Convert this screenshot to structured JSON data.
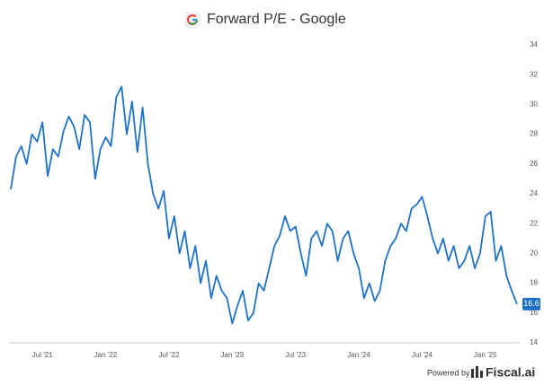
{
  "chart_data": {
    "type": "line",
    "title": "Forward P/E - Google",
    "footer": {
      "powered": "Powered by",
      "brand": "Fiscal.ai"
    },
    "categories": [
      null,
      null,
      null,
      null,
      null,
      null,
      "Jul '21",
      null,
      null,
      null,
      null,
      null,
      null,
      null,
      null,
      null,
      null,
      null,
      "Jan '22",
      null,
      null,
      null,
      null,
      null,
      null,
      null,
      null,
      null,
      null,
      null,
      "Jul '22",
      null,
      null,
      null,
      null,
      null,
      null,
      null,
      null,
      null,
      null,
      null,
      "Jan '23",
      null,
      null,
      null,
      null,
      null,
      null,
      null,
      null,
      null,
      null,
      null,
      "Jul '23",
      null,
      null,
      null,
      null,
      null,
      null,
      null,
      null,
      null,
      null,
      null,
      "Jan '24",
      null,
      null,
      null,
      null,
      null,
      null,
      null,
      null,
      null,
      null,
      null,
      "Jul '24",
      null,
      null,
      null,
      null,
      null,
      null,
      null,
      null,
      null,
      null,
      null,
      "Jan '25",
      null,
      null,
      null,
      null,
      null,
      null
    ],
    "series": [
      {
        "name": "Forward P/E",
        "color": "#1f72c8",
        "values": [
          24.3,
          26.5,
          27.2,
          26.0,
          28.0,
          27.5,
          28.8,
          25.2,
          27.0,
          26.5,
          28.2,
          29.2,
          28.5,
          27.0,
          29.3,
          28.8,
          25.0,
          27.0,
          27.8,
          27.2,
          30.5,
          31.2,
          28.0,
          30.2,
          26.8,
          29.8,
          26.0,
          24.0,
          23.0,
          24.2,
          21.0,
          22.5,
          20.0,
          21.5,
          19.0,
          20.5,
          18.0,
          19.5,
          17.0,
          18.5,
          17.5,
          17.0,
          15.3,
          16.5,
          17.5,
          15.5,
          16.0,
          18.0,
          17.5,
          19.0,
          20.5,
          21.2,
          22.5,
          21.5,
          21.8,
          20.0,
          18.5,
          21.0,
          21.5,
          20.5,
          22.0,
          21.5,
          19.5,
          21.0,
          21.5,
          20.0,
          19.0,
          17.0,
          18.0,
          16.8,
          17.5,
          19.5,
          20.5,
          21.0,
          22.0,
          21.5,
          23.0,
          23.3,
          23.8,
          22.5,
          21.0,
          20.0,
          21.0,
          19.5,
          20.5,
          19.0,
          19.5,
          20.5,
          19.0,
          20.0,
          22.5,
          22.8,
          19.5,
          20.5,
          18.5,
          17.5,
          16.6
        ]
      }
    ],
    "ylim": [
      14,
      34
    ],
    "yticks": [
      14,
      16,
      18,
      20,
      22,
      24,
      26,
      28,
      30,
      32,
      34
    ],
    "grid": false
  }
}
